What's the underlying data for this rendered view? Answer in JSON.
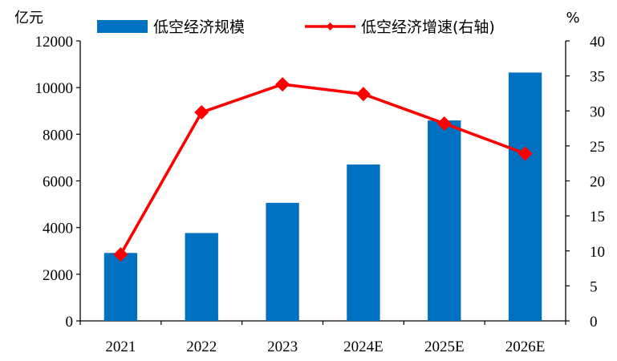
{
  "chart_data": {
    "type": "bar+line",
    "categories": [
      "2021",
      "2022",
      "2023",
      "2024E",
      "2025E",
      "2026E"
    ],
    "series": [
      {
        "name": "低空经济规模",
        "type": "bar",
        "axis": "left",
        "color": "#0070C0",
        "values": [
          2912,
          3766,
          5060,
          6702,
          8592,
          10644
        ]
      },
      {
        "name": "低空经济增速(右轴)",
        "type": "line",
        "axis": "right",
        "color": "#FF0000",
        "values": [
          9.5,
          29.8,
          33.8,
          32.4,
          28.2,
          23.9
        ]
      }
    ],
    "y_left": {
      "unit": "亿元",
      "ylim": [
        0,
        12000
      ],
      "ticks": [
        0,
        2000,
        4000,
        6000,
        8000,
        10000,
        12000
      ]
    },
    "y_right": {
      "unit": "%",
      "ylim": [
        0,
        40
      ],
      "ticks": [
        0,
        5,
        10,
        15,
        20,
        25,
        30,
        35,
        40
      ]
    },
    "legend_position": "top"
  }
}
